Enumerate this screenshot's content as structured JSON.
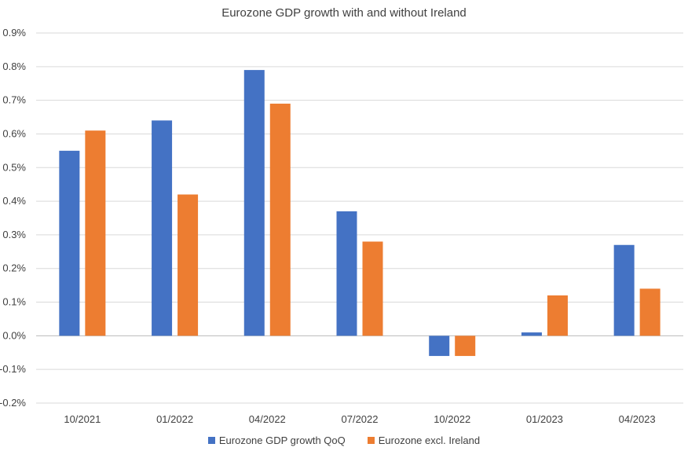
{
  "chart_data": {
    "type": "bar",
    "title": "Eurozone GDP growth with and without Ireland",
    "categories": [
      "10/2021",
      "01/2022",
      "04/2022",
      "07/2022",
      "10/2022",
      "01/2023",
      "04/2023"
    ],
    "series": [
      {
        "name": "Eurozone GDP growth QoQ",
        "color": "#4472c4",
        "values": [
          0.55,
          0.64,
          0.79,
          0.37,
          -0.06,
          0.01,
          0.27
        ]
      },
      {
        "name": "Eurozone excl. Ireland",
        "color": "#ed7d31",
        "values": [
          0.61,
          0.42,
          0.69,
          0.28,
          -0.06,
          0.12,
          0.14
        ]
      }
    ],
    "ylim": [
      -0.2,
      0.9
    ],
    "yticks": [
      -0.2,
      -0.1,
      0.0,
      0.1,
      0.2,
      0.3,
      0.4,
      0.5,
      0.6,
      0.7,
      0.8,
      0.9
    ],
    "ytick_labels": [
      "-0.2%",
      "-0.1%",
      "0.0%",
      "0.1%",
      "0.2%",
      "0.3%",
      "0.4%",
      "0.5%",
      "0.6%",
      "0.7%",
      "0.8%",
      "0.9%"
    ],
    "grid": true,
    "legend_position": "bottom"
  }
}
